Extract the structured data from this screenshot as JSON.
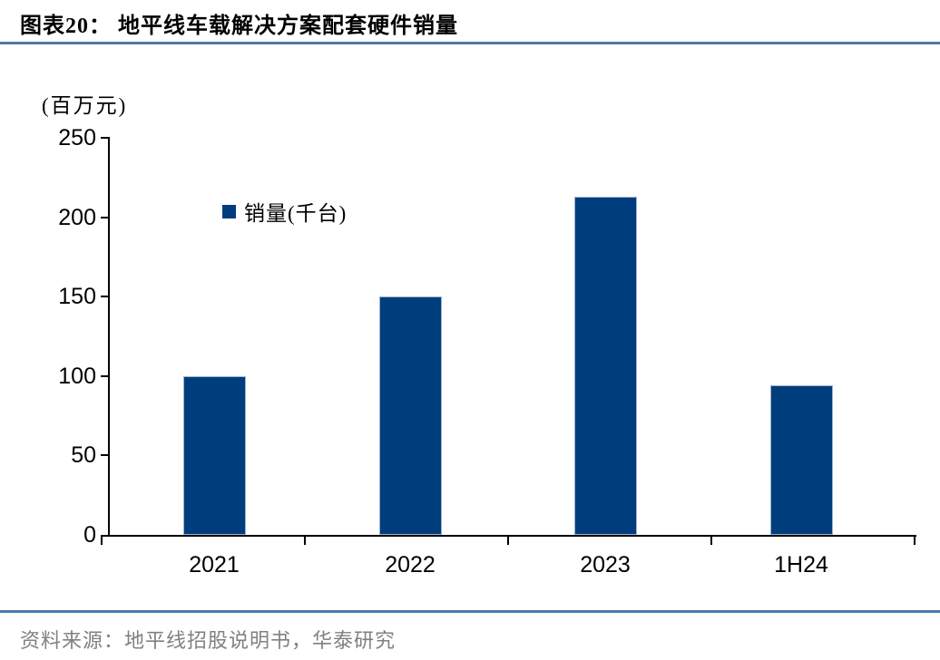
{
  "header": {
    "title": "图表20： 地平线车载解决方案配套硬件销量"
  },
  "chart_data": {
    "type": "bar",
    "title": "图表20： 地平线车载解决方案配套硬件销量",
    "categories": [
      "2021",
      "2022",
      "2023",
      "1H24"
    ],
    "values": [
      100,
      150,
      213,
      94
    ],
    "series_name": "销量(千台)",
    "unit_label": "(百万元)",
    "ylim": [
      0,
      250
    ],
    "yticks": [
      0,
      50,
      100,
      150,
      200,
      250
    ],
    "grid": false,
    "legend_position": "inside-top-left",
    "bar_color": "#003D7C"
  },
  "legend": {
    "label": "销量(千台)"
  },
  "axis": {
    "unit_label": "(百万元)"
  },
  "footer": {
    "source": "资料来源：地平线招股说明书，华泰研究"
  },
  "colors": {
    "bar": "#003D7C",
    "rule": "#4E79A7",
    "axis": "#000000",
    "source_text": "#808080"
  }
}
